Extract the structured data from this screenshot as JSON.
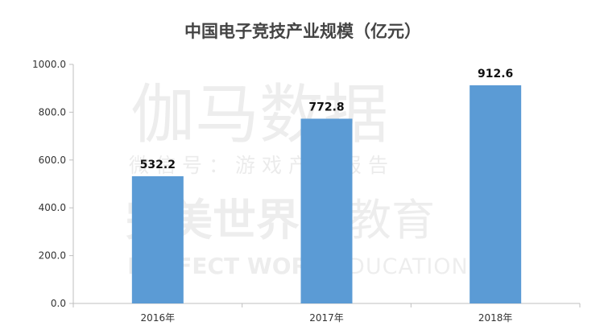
{
  "watermark": {
    "line1": "伽马数据",
    "line2": "微信号：游戏产业报告",
    "logo": "完美世界",
    "logo_suffix": "教育",
    "logo_en": "PERFECT WORLD",
    "logo_en_suffix": "EDUCATION"
  },
  "chart_data": {
    "type": "bar",
    "title": "中国电子竞技产业规模（亿元）",
    "categories": [
      "2016年",
      "2017年",
      "2018年"
    ],
    "values": [
      532.2,
      772.8,
      912.6
    ],
    "data_labels": [
      "532.2",
      "772.8",
      "912.6"
    ],
    "ylim": [
      0,
      1000
    ],
    "yticks": [
      "0.0",
      "200.0",
      "400.0",
      "600.0",
      "800.0",
      "1000.0"
    ],
    "ytick_values": [
      0,
      200,
      400,
      600,
      800,
      1000
    ],
    "xlabel": "",
    "ylabel": "",
    "grid": false,
    "legend": "none",
    "bar_color": "#5b9bd5"
  }
}
